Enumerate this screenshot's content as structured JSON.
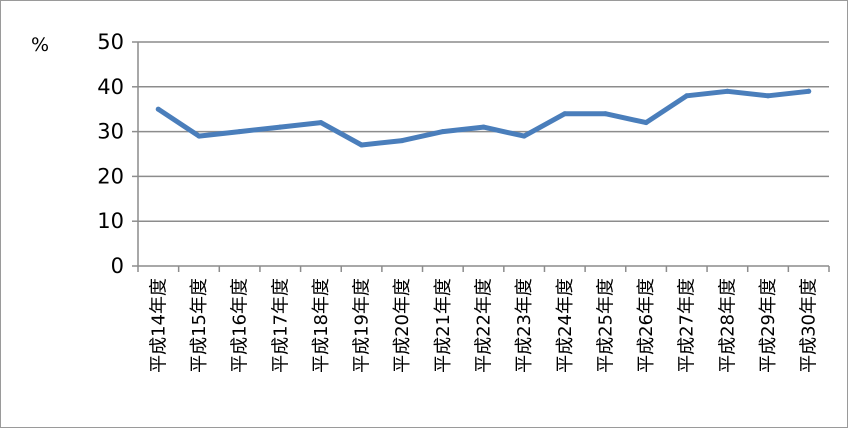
{
  "chart_data": {
    "type": "line",
    "title": "",
    "xlabel": "",
    "ylabel": "%",
    "ylim": [
      0,
      50
    ],
    "yticks": [
      "0",
      "10",
      "20",
      "30",
      "40",
      "50"
    ],
    "grid": true,
    "legend": "none",
    "categories": [
      "平成14年度",
      "平成15年度",
      "平成16年度",
      "平成17年度",
      "平成18年度",
      "平成19年度",
      "平成20年度",
      "平成21年度",
      "平成22年度",
      "平成23年度",
      "平成24年度",
      "平成25年度",
      "平成26年度",
      "平成27年度",
      "平成28年度",
      "平成29年度",
      "平成30年度"
    ],
    "series": [
      {
        "values": [
          35,
          29,
          30,
          31,
          32,
          27,
          28,
          30,
          31,
          29,
          34,
          34,
          32,
          38,
          39,
          38,
          39
        ]
      }
    ],
    "colors": {
      "line": "#4a7ebb",
      "grid": "#8c8c8c",
      "axis": "#8c8c8c"
    }
  }
}
